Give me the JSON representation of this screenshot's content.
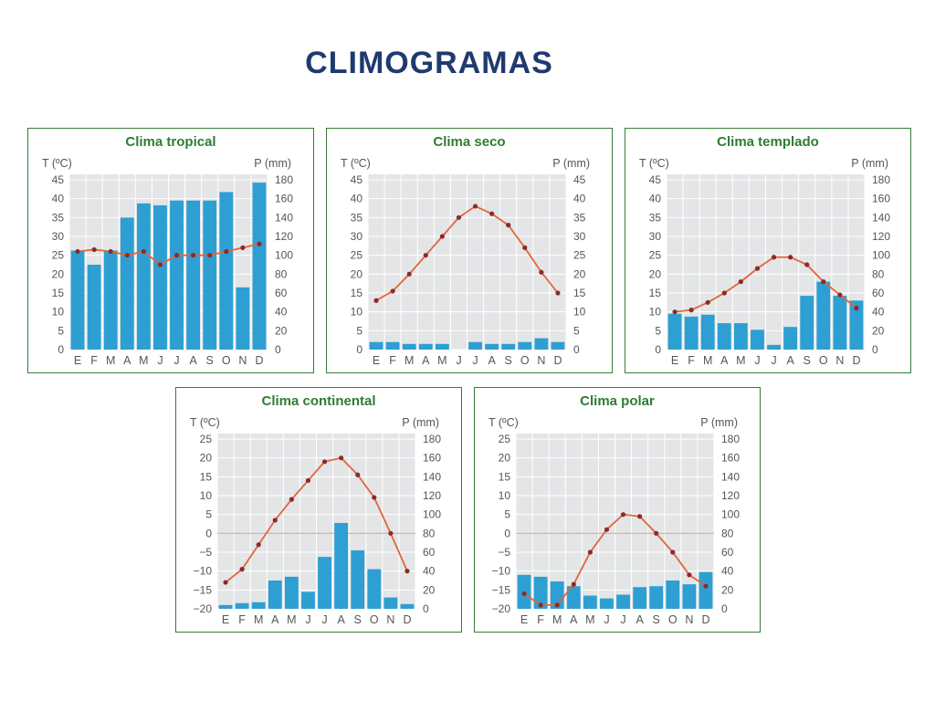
{
  "page": {
    "title": "CLIMOGRAMAS"
  },
  "chart_data": [
    {
      "type": "bar",
      "title": "Clima tropical",
      "left_axis_label": "T (ºC)",
      "right_axis_label": "P (mm)",
      "categories": [
        "E",
        "F",
        "M",
        "A",
        "M",
        "J",
        "J",
        "A",
        "S",
        "O",
        "N",
        "D"
      ],
      "temp_ticks": [
        "0",
        "5",
        "10",
        "15",
        "20",
        "25",
        "30",
        "35",
        "40",
        "45"
      ],
      "precip_ticks": [
        "0",
        "20",
        "40",
        "60",
        "80",
        "100",
        "120",
        "140",
        "160",
        "180"
      ],
      "temp_range": [
        0,
        45
      ],
      "precip_range": [
        0,
        180
      ],
      "zero_line": false,
      "series": [
        {
          "name": "P (mm)",
          "kind": "bar",
          "axis": "right",
          "values": [
            105,
            90,
            105,
            140,
            155,
            153,
            158,
            158,
            158,
            167,
            66,
            177
          ]
        },
        {
          "name": "T (ºC)",
          "kind": "line",
          "axis": "left",
          "values": [
            26,
            26.5,
            26,
            25,
            26,
            22.5,
            25,
            25,
            25,
            26,
            27,
            28
          ]
        }
      ]
    },
    {
      "type": "bar",
      "title": "Clima seco",
      "left_axis_label": "T (ºC)",
      "right_axis_label": "P (mm)",
      "categories": [
        "E",
        "F",
        "M",
        "A",
        "M",
        "J",
        "J",
        "A",
        "S",
        "O",
        "N",
        "D"
      ],
      "temp_ticks": [
        "0",
        "5",
        "10",
        "15",
        "20",
        "25",
        "30",
        "35",
        "40",
        "45"
      ],
      "precip_ticks": [
        "0",
        "5",
        "10",
        "15",
        "20",
        "25",
        "30",
        "35",
        "40",
        "45"
      ],
      "temp_range": [
        0,
        45
      ],
      "precip_range": [
        0,
        45
      ],
      "zero_line": false,
      "series": [
        {
          "name": "P (mm)",
          "kind": "bar",
          "axis": "right",
          "values": [
            2,
            2,
            1.5,
            1.5,
            1.5,
            0,
            2,
            1.5,
            1.5,
            2,
            3,
            2
          ]
        },
        {
          "name": "T (ºC)",
          "kind": "line",
          "axis": "left",
          "values": [
            13,
            15.5,
            20,
            25,
            30,
            35,
            38,
            36,
            33,
            27,
            20.5,
            15
          ]
        }
      ]
    },
    {
      "type": "bar",
      "title": "Clima templado",
      "left_axis_label": "T (ºC)",
      "right_axis_label": "P (mm)",
      "categories": [
        "E",
        "F",
        "M",
        "A",
        "M",
        "J",
        "J",
        "A",
        "S",
        "O",
        "N",
        "D"
      ],
      "temp_ticks": [
        "0",
        "5",
        "10",
        "15",
        "20",
        "25",
        "30",
        "35",
        "40",
        "45"
      ],
      "precip_ticks": [
        "0",
        "20",
        "40",
        "60",
        "80",
        "100",
        "120",
        "140",
        "160",
        "180"
      ],
      "temp_range": [
        0,
        45
      ],
      "precip_range": [
        0,
        180
      ],
      "zero_line": false,
      "series": [
        {
          "name": "P (mm)",
          "kind": "bar",
          "axis": "right",
          "values": [
            38,
            35,
            37,
            28,
            28,
            21,
            5,
            24,
            57,
            72,
            57,
            52
          ]
        },
        {
          "name": "T (ºC)",
          "kind": "line",
          "axis": "left",
          "values": [
            10,
            10.5,
            12.5,
            15,
            18,
            21.5,
            24.5,
            24.5,
            22.5,
            18,
            14.5,
            11
          ]
        }
      ]
    },
    {
      "type": "bar",
      "title": "Clima continental",
      "left_axis_label": "T (ºC)",
      "right_axis_label": "P (mm)",
      "categories": [
        "E",
        "F",
        "M",
        "A",
        "M",
        "J",
        "J",
        "A",
        "S",
        "O",
        "N",
        "D"
      ],
      "temp_ticks": [
        "−20",
        "−15",
        "−10",
        "−5",
        "0",
        "5",
        "10",
        "15",
        "20",
        "25"
      ],
      "precip_ticks": [
        "0",
        "20",
        "40",
        "60",
        "80",
        "100",
        "120",
        "140",
        "160",
        "180"
      ],
      "temp_range": [
        -20,
        25
      ],
      "precip_range": [
        0,
        180
      ],
      "zero_line": true,
      "series": [
        {
          "name": "P (mm)",
          "kind": "bar",
          "axis": "right",
          "values": [
            4,
            6,
            7,
            30,
            34,
            18,
            55,
            91,
            62,
            42,
            12,
            5
          ]
        },
        {
          "name": "T (ºC)",
          "kind": "line",
          "axis": "left",
          "values": [
            -13,
            -9.5,
            -3,
            3.5,
            9,
            14,
            19,
            20,
            15.5,
            9.5,
            0,
            -10
          ]
        }
      ]
    },
    {
      "type": "bar",
      "title": "Clima polar",
      "left_axis_label": "T (ºC)",
      "right_axis_label": "P (mm)",
      "categories": [
        "E",
        "F",
        "M",
        "A",
        "M",
        "J",
        "J",
        "A",
        "S",
        "O",
        "N",
        "D"
      ],
      "temp_ticks": [
        "−20",
        "−15",
        "−10",
        "−5",
        "0",
        "5",
        "10",
        "15",
        "20",
        "25"
      ],
      "precip_ticks": [
        "0",
        "20",
        "40",
        "60",
        "80",
        "100",
        "120",
        "140",
        "160",
        "180"
      ],
      "temp_range": [
        -20,
        25
      ],
      "precip_range": [
        0,
        180
      ],
      "zero_line": true,
      "series": [
        {
          "name": "P (mm)",
          "kind": "bar",
          "axis": "right",
          "values": [
            36,
            34,
            29,
            24,
            14,
            11,
            15,
            23,
            24,
            30,
            26,
            39
          ]
        },
        {
          "name": "T (ºC)",
          "kind": "line",
          "axis": "left",
          "values": [
            -16,
            -19,
            -19,
            -13.5,
            -5,
            1,
            5,
            4.5,
            0,
            -5,
            -11,
            -14
          ]
        }
      ]
    }
  ]
}
